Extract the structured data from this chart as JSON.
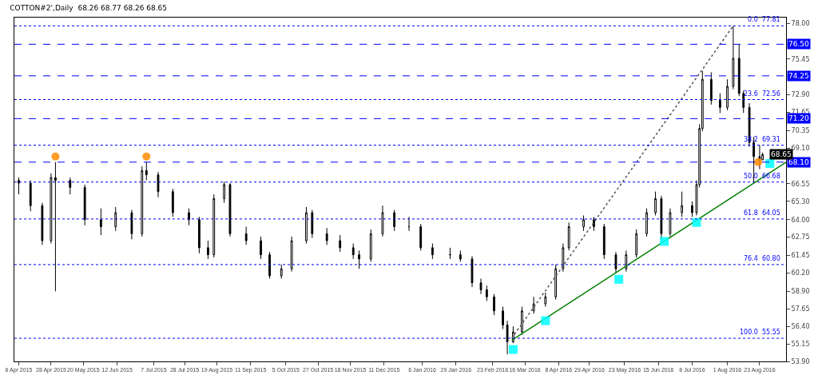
{
  "chart_data": {
    "type": "candlestick",
    "title": "COTTON#2',Daily  68.26 68.77 68.26 68.65",
    "color": "#000000",
    "x": [
      "2015-04-06",
      "2015-04-14",
      "2015-04-22",
      "2015-04-28",
      "2015-05-01",
      "2015-05-11",
      "2015-05-21",
      "2015-06-01",
      "2015-06-11",
      "2015-06-22",
      "2015-06-29",
      "2015-07-02",
      "2015-07-10",
      "2015-07-20",
      "2015-07-31",
      "2015-08-07",
      "2015-08-13",
      "2015-08-17",
      "2015-08-24",
      "2015-08-28",
      "2015-09-08",
      "2015-09-18",
      "2015-09-24",
      "2015-10-02",
      "2015-10-09",
      "2015-10-19",
      "2015-10-23",
      "2015-11-02",
      "2015-11-11",
      "2015-11-20",
      "2015-11-24",
      "2015-12-02",
      "2015-12-10",
      "2015-12-18",
      "2015-12-28",
      "2016-01-05",
      "2016-01-13",
      "2016-01-25",
      "2016-02-01",
      "2016-02-09",
      "2016-02-15",
      "2016-02-19",
      "2016-02-24",
      "2016-03-01",
      "2016-03-04",
      "2016-03-08",
      "2016-03-14",
      "2016-03-22",
      "2016-03-30",
      "2016-04-06",
      "2016-04-11",
      "2016-04-15",
      "2016-04-25",
      "2016-05-02",
      "2016-05-09",
      "2016-05-17",
      "2016-05-24",
      "2016-05-31",
      "2016-06-07",
      "2016-06-13",
      "2016-06-17",
      "2016-06-23",
      "2016-07-01",
      "2016-07-08",
      "2016-07-11",
      "2016-07-13",
      "2016-07-15",
      "2016-07-21",
      "2016-07-27",
      "2016-08-01",
      "2016-08-05",
      "2016-08-09",
      "2016-08-12",
      "2016-08-16",
      "2016-08-19",
      "2016-08-23",
      "2016-08-25"
    ],
    "ohlc": [
      [
        66.8,
        67.0,
        65.8,
        66.6
      ],
      [
        66.6,
        66.8,
        64.6,
        65.0
      ],
      [
        65.0,
        65.2,
        62.2,
        62.5
      ],
      [
        62.5,
        67.3,
        62.3,
        67.0
      ],
      [
        67.0,
        68.1,
        58.9,
        66.8
      ],
      [
        66.8,
        67.0,
        65.8,
        66.3
      ],
      [
        66.3,
        66.5,
        63.6,
        64.0
      ],
      [
        64.0,
        64.8,
        62.9,
        63.5
      ],
      [
        63.5,
        64.9,
        63.2,
        64.5
      ],
      [
        64.5,
        64.7,
        62.6,
        63.0
      ],
      [
        63.0,
        67.8,
        62.8,
        67.5
      ],
      [
        67.5,
        68.1,
        66.8,
        67.2
      ],
      [
        67.2,
        67.4,
        65.6,
        66.0
      ],
      [
        66.0,
        66.2,
        64.2,
        64.5
      ],
      [
        64.5,
        64.8,
        63.6,
        64.0
      ],
      [
        64.0,
        64.2,
        61.6,
        62.0
      ],
      [
        62.0,
        62.5,
        61.2,
        61.5
      ],
      [
        61.5,
        65.8,
        61.3,
        65.5
      ],
      [
        65.5,
        66.7,
        65.2,
        66.5
      ],
      [
        66.5,
        66.6,
        62.8,
        63.0
      ],
      [
        63.0,
        63.5,
        62.2,
        62.5
      ],
      [
        62.5,
        62.8,
        61.2,
        61.5
      ],
      [
        61.5,
        61.7,
        59.8,
        60.0
      ],
      [
        60.0,
        60.8,
        59.8,
        60.5
      ],
      [
        60.5,
        62.8,
        60.3,
        62.5
      ],
      [
        62.5,
        64.9,
        62.3,
        64.5
      ],
      [
        64.5,
        64.7,
        62.7,
        63.0
      ],
      [
        63.0,
        63.4,
        62.2,
        62.5
      ],
      [
        62.5,
        62.9,
        61.7,
        62.0
      ],
      [
        62.0,
        62.3,
        61.2,
        61.5
      ],
      [
        61.5,
        61.8,
        60.5,
        61.2
      ],
      [
        61.2,
        63.3,
        61.0,
        63.0
      ],
      [
        63.0,
        65.0,
        62.8,
        64.5
      ],
      [
        64.5,
        64.7,
        63.2,
        63.5
      ],
      [
        63.5,
        64.2,
        63.2,
        63.5
      ],
      [
        63.5,
        63.7,
        61.8,
        62.0
      ],
      [
        62.0,
        62.3,
        61.2,
        61.5
      ],
      [
        61.5,
        62.0,
        61.2,
        61.5
      ],
      [
        61.5,
        61.8,
        61.0,
        61.2
      ],
      [
        61.2,
        61.4,
        59.2,
        59.5
      ],
      [
        59.5,
        59.8,
        58.7,
        59.0
      ],
      [
        59.0,
        59.3,
        58.2,
        58.5
      ],
      [
        58.5,
        58.7,
        57.2,
        57.5
      ],
      [
        57.5,
        57.8,
        56.2,
        56.5
      ],
      [
        56.5,
        56.8,
        54.4,
        55.3
      ],
      [
        55.3,
        56.4,
        55.2,
        56.0
      ],
      [
        56.0,
        57.8,
        55.8,
        57.5
      ],
      [
        57.5,
        58.5,
        57.3,
        58.0
      ],
      [
        58.0,
        58.8,
        57.8,
        58.5
      ],
      [
        58.5,
        60.8,
        58.3,
        60.5
      ],
      [
        60.5,
        62.3,
        60.3,
        62.0
      ],
      [
        62.0,
        63.8,
        61.8,
        63.5
      ],
      [
        63.5,
        64.3,
        63.2,
        64.0
      ],
      [
        64.0,
        64.2,
        63.2,
        63.5
      ],
      [
        63.5,
        63.7,
        61.2,
        61.5
      ],
      [
        61.5,
        61.7,
        60.2,
        60.5
      ],
      [
        60.5,
        61.8,
        60.3,
        61.5
      ],
      [
        61.5,
        63.3,
        61.3,
        63.0
      ],
      [
        63.0,
        64.8,
        62.8,
        64.5
      ],
      [
        64.5,
        66.0,
        64.3,
        65.5
      ],
      [
        65.5,
        65.7,
        62.6,
        63.0
      ],
      [
        63.0,
        64.8,
        62.8,
        64.5
      ],
      [
        64.5,
        66.0,
        64.2,
        65.0
      ],
      [
        65.0,
        65.3,
        64.2,
        64.5
      ],
      [
        64.5,
        66.8,
        64.3,
        66.5
      ],
      [
        66.5,
        70.8,
        66.3,
        70.5
      ],
      [
        70.5,
        74.6,
        70.3,
        74.0
      ],
      [
        74.0,
        74.5,
        72.2,
        72.5
      ],
      [
        72.5,
        73.0,
        71.6,
        72.0
      ],
      [
        72.0,
        74.0,
        71.8,
        73.5
      ],
      [
        73.5,
        77.8,
        73.3,
        75.5
      ],
      [
        75.5,
        76.5,
        72.8,
        73.0
      ],
      [
        73.0,
        73.2,
        71.6,
        72.0
      ],
      [
        72.0,
        72.3,
        69.2,
        69.5
      ],
      [
        69.5,
        69.9,
        66.7,
        68.5
      ],
      [
        68.5,
        69.3,
        67.6,
        68.26
      ],
      [
        68.26,
        68.77,
        68.26,
        68.65
      ]
    ],
    "series": [
      {
        "type": "line",
        "color": "#008000",
        "line_style": "solid",
        "x": [
          "2016-03-07",
          "2016-09-10"
        ],
        "values": [
          55.4,
          68.1
        ]
      },
      {
        "type": "line",
        "color": "#555555",
        "line_style": "dotted",
        "x": [
          "2016-03-07",
          "2016-08-05"
        ],
        "values": [
          55.55,
          77.81
        ]
      },
      {
        "type": "scatter",
        "color": "#ff8c00",
        "marker": "circle",
        "x": [
          "2015-05-01",
          "2015-07-02",
          "2016-08-22"
        ],
        "values": [
          68.5,
          68.5,
          68.1
        ]
      },
      {
        "type": "scatter",
        "color": "#00ffff",
        "marker": "square",
        "x": [
          "2016-03-08",
          "2016-03-30",
          "2016-05-19",
          "2016-06-19",
          "2016-07-11",
          "2016-08-30"
        ],
        "values": [
          54.75,
          56.8,
          59.75,
          62.45,
          63.8,
          68.0
        ]
      }
    ],
    "ref_lines": [
      {
        "axis": "y",
        "value": 77.81,
        "label": "0.0  77.81",
        "color": "#0000ff",
        "line_style": "dotted"
      },
      {
        "axis": "y",
        "value": 72.56,
        "label": "23.6  72.56",
        "color": "#0000ff",
        "line_style": "dotted"
      },
      {
        "axis": "y",
        "value": 69.31,
        "label": "38.2  69.31",
        "color": "#0000ff",
        "line_style": "dotted"
      },
      {
        "axis": "y",
        "value": 66.68,
        "label": "50.0  66.68",
        "color": "#0000ff",
        "line_style": "dotted"
      },
      {
        "axis": "y",
        "value": 64.05,
        "label": "61.8  64.05",
        "color": "#0000ff",
        "line_style": "dotted"
      },
      {
        "axis": "y",
        "value": 60.8,
        "label": "76.4  60.80",
        "color": "#0000ff",
        "line_style": "dotted"
      },
      {
        "axis": "y",
        "value": 55.55,
        "label": "100.0  55.55",
        "color": "#0000ff",
        "line_style": "dotted"
      },
      {
        "axis": "y",
        "value": 76.5,
        "label": "76.50",
        "color": "#0000ff",
        "line_style": "dashed"
      },
      {
        "axis": "y",
        "value": 74.25,
        "label": "74.25",
        "color": "#0000ff",
        "line_style": "dashed"
      },
      {
        "axis": "y",
        "value": 71.2,
        "label": "71.20",
        "color": "#0000ff",
        "line_style": "dashed"
      },
      {
        "axis": "y",
        "value": 68.1,
        "label": "68.10",
        "color": "#0000ff",
        "line_style": "dashed"
      }
    ],
    "annotations": [
      {
        "text": "68.65",
        "x": "2016-08-25",
        "y": 68.65
      }
    ],
    "xlim": [
      "2015-04-03",
      "2016-09-10"
    ],
    "xticks": [
      {
        "value": "2015-04-06",
        "label": "6 Apr 2015"
      },
      {
        "value": "2015-04-28",
        "label": "28 Apr 2015"
      },
      {
        "value": "2015-05-20",
        "label": "20 May 2015"
      },
      {
        "value": "2015-06-12",
        "label": "12 Jun 2015"
      },
      {
        "value": "2015-07-07",
        "label": "7 Jul 2015"
      },
      {
        "value": "2015-07-28",
        "label": "28 Jul 2015"
      },
      {
        "value": "2015-08-19",
        "label": "19 Aug 2015"
      },
      {
        "value": "2015-09-11",
        "label": "11 Sep 2015"
      },
      {
        "value": "2015-10-05",
        "label": "5 Oct 2015"
      },
      {
        "value": "2015-10-27",
        "label": "27 Oct 2015"
      },
      {
        "value": "2015-11-18",
        "label": "18 Nov 2015"
      },
      {
        "value": "2015-12-11",
        "label": "11 Dec 2015"
      },
      {
        "value": "2016-01-06",
        "label": "6 Jan 2016"
      },
      {
        "value": "2016-01-29",
        "label": "29 Jan 2016"
      },
      {
        "value": "2016-02-23",
        "label": "23 Feb 2016"
      },
      {
        "value": "2016-03-16",
        "label": "16 Mar 2016"
      },
      {
        "value": "2016-04-08",
        "label": "8 Apr 2016"
      },
      {
        "value": "2016-04-29",
        "label": "29 Apr 2016"
      },
      {
        "value": "2016-05-23",
        "label": "23 May 2016"
      },
      {
        "value": "2016-06-15",
        "label": "15 Jun 2016"
      },
      {
        "value": "2016-07-08",
        "label": "8 Jul 2016"
      },
      {
        "value": "2016-08-01",
        "label": "1 Aug 2016"
      },
      {
        "value": "2016-08-23",
        "label": "23 Aug 2016"
      }
    ],
    "ylim": [
      53.9,
      78.4
    ],
    "yticks": [
      {
        "value": 78,
        "label": "78.00"
      },
      {
        "value": 75.45,
        "label": "75.45"
      },
      {
        "value": 72.9,
        "label": "72.90"
      },
      {
        "value": 71.65,
        "label": "71.65"
      },
      {
        "value": 70.35,
        "label": "70.35"
      },
      {
        "value": 69.1,
        "label": "69.10"
      },
      {
        "value": 66.55,
        "label": "66.55"
      },
      {
        "value": 65.3,
        "label": "65.30"
      },
      {
        "value": 64,
        "label": "64.00"
      },
      {
        "value": 62.75,
        "label": "62.75"
      },
      {
        "value": 61.45,
        "label": "61.45"
      },
      {
        "value": 60.2,
        "label": "60.20"
      },
      {
        "value": 58.9,
        "label": "58.90"
      },
      {
        "value": 57.65,
        "label": "57.65"
      },
      {
        "value": 56.4,
        "label": "56.40"
      },
      {
        "value": 55.15,
        "label": "55.15"
      },
      {
        "value": 53.9,
        "label": "53.90"
      }
    ],
    "grid": false
  }
}
